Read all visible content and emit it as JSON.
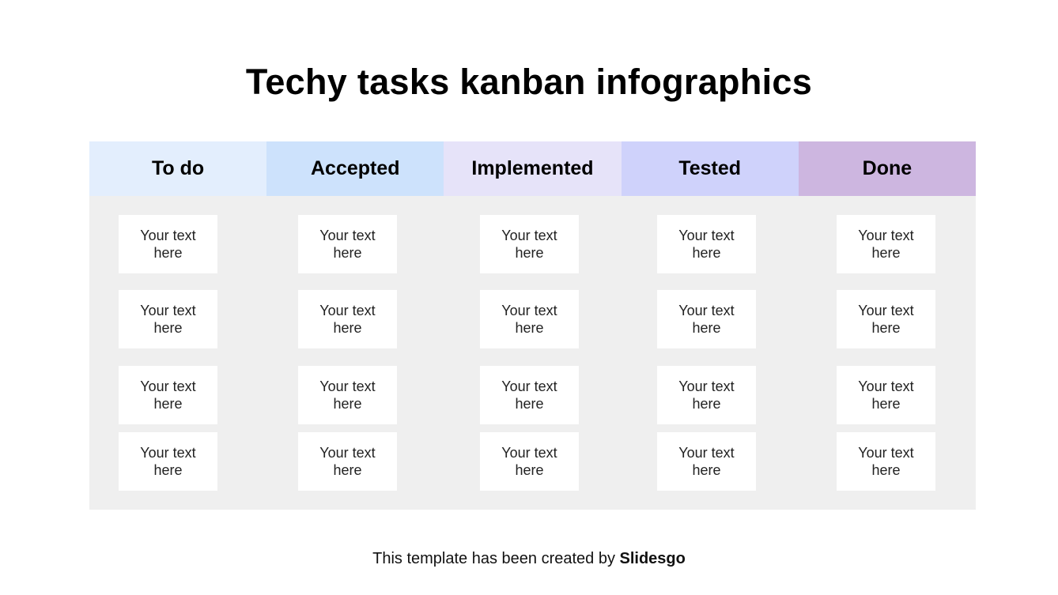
{
  "title": "Techy tasks kanban infographics",
  "columns": [
    {
      "label": "To do",
      "color": "#e3eefd",
      "cards": [
        "Your text here",
        "Your text here",
        "Your text here",
        "Your text here"
      ]
    },
    {
      "label": "Accepted",
      "color": "#cde2fc",
      "cards": [
        "Your text here",
        "Your text here",
        "Your text here",
        "Your text here"
      ]
    },
    {
      "label": "Implemented",
      "color": "#e6e3f9",
      "cards": [
        "Your text here",
        "Your text here",
        "Your text here",
        "Your text here"
      ]
    },
    {
      "label": "Tested",
      "color": "#cfd2fb",
      "cards": [
        "Your text here",
        "Your text here",
        "Your text here",
        "Your text here"
      ]
    },
    {
      "label": "Done",
      "color": "#cdb6e0",
      "cards": [
        "Your text here",
        "Your text here",
        "Your text here",
        "Your text here"
      ]
    }
  ],
  "footer": {
    "text": "This template has been created by ",
    "brand": "Slidesgo"
  }
}
